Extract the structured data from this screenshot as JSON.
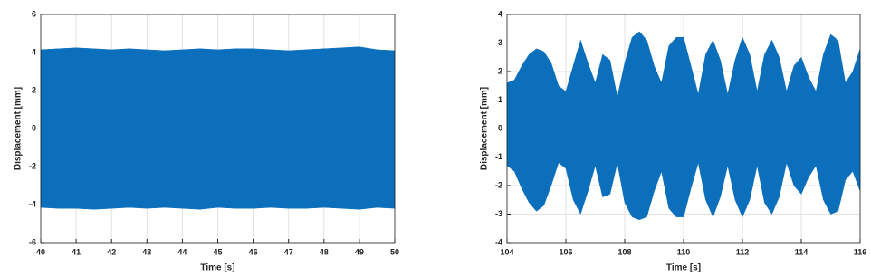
{
  "chart_data": [
    {
      "type": "area",
      "xlabel": "Time [s]",
      "ylabel": "Displacement [mm]",
      "color": "#0b6fbb",
      "grid": true,
      "x": [
        40,
        40.5,
        41,
        41.5,
        42,
        42.5,
        43,
        43.5,
        44,
        44.5,
        45,
        45.5,
        46,
        46.5,
        47,
        47.5,
        48,
        48.5,
        49,
        49.5,
        50
      ],
      "upper": [
        4.15,
        4.2,
        4.25,
        4.2,
        4.15,
        4.2,
        4.15,
        4.1,
        4.15,
        4.2,
        4.15,
        4.2,
        4.2,
        4.15,
        4.1,
        4.15,
        4.2,
        4.25,
        4.3,
        4.15,
        4.1
      ],
      "lower": [
        -4.15,
        -4.2,
        -4.2,
        -4.25,
        -4.2,
        -4.15,
        -4.2,
        -4.15,
        -4.2,
        -4.25,
        -4.15,
        -4.2,
        -4.2,
        -4.15,
        -4.2,
        -4.2,
        -4.15,
        -4.2,
        -4.25,
        -4.15,
        -4.2
      ],
      "xlim": [
        40,
        50
      ],
      "xticks": [
        40,
        41,
        42,
        43,
        44,
        45,
        46,
        47,
        48,
        49,
        50
      ],
      "ylim": [
        -6,
        6
      ],
      "yticks": [
        -6,
        -4,
        -2,
        0,
        2,
        4,
        6
      ]
    },
    {
      "type": "area",
      "xlabel": "Time [s]",
      "ylabel": "Displacement [mm]",
      "color": "#0b6fbb",
      "grid": true,
      "x": [
        104,
        104.25,
        104.5,
        104.75,
        105,
        105.25,
        105.5,
        105.75,
        106,
        106.25,
        106.5,
        106.75,
        107,
        107.25,
        107.5,
        107.75,
        108,
        108.25,
        108.5,
        108.75,
        109,
        109.25,
        109.5,
        109.75,
        110,
        110.25,
        110.5,
        110.75,
        111,
        111.25,
        111.5,
        111.75,
        112,
        112.25,
        112.5,
        112.75,
        113,
        113.25,
        113.5,
        113.75,
        114,
        114.25,
        114.5,
        114.75,
        115,
        115.25,
        115.5,
        115.75,
        116
      ],
      "upper": [
        1.6,
        1.7,
        2.2,
        2.6,
        2.8,
        2.7,
        2.3,
        1.5,
        1.3,
        2.2,
        3.1,
        2.3,
        1.6,
        2.6,
        2.4,
        1.1,
        2.3,
        3.2,
        3.4,
        3.1,
        2.2,
        1.6,
        2.9,
        3.2,
        3.2,
        2.2,
        1.2,
        2.6,
        3.1,
        2.4,
        1.2,
        2.4,
        3.2,
        2.6,
        1.3,
        2.6,
        3.1,
        2.5,
        1.3,
        2.2,
        2.5,
        1.8,
        1.3,
        2.6,
        3.3,
        3.1,
        1.6,
        2.0,
        2.8
      ],
      "lower": [
        -1.3,
        -1.5,
        -2.1,
        -2.6,
        -2.9,
        -2.7,
        -2.0,
        -1.2,
        -1.4,
        -2.5,
        -3.0,
        -2.2,
        -1.3,
        -2.4,
        -2.3,
        -1.2,
        -2.6,
        -3.1,
        -3.2,
        -3.1,
        -2.2,
        -1.5,
        -2.8,
        -3.1,
        -3.1,
        -2.1,
        -1.2,
        -2.5,
        -3.1,
        -2.4,
        -1.3,
        -2.5,
        -3.1,
        -2.5,
        -1.3,
        -2.6,
        -3.0,
        -2.4,
        -1.2,
        -2.0,
        -2.3,
        -1.7,
        -1.3,
        -2.5,
        -3.0,
        -2.9,
        -1.8,
        -1.5,
        -2.2
      ],
      "xlim": [
        104,
        116
      ],
      "xticks": [
        104,
        106,
        108,
        110,
        112,
        114,
        116
      ],
      "ylim": [
        -4,
        4
      ],
      "yticks": [
        -4,
        -3,
        -2,
        -1,
        0,
        1,
        2,
        3,
        4
      ]
    }
  ]
}
